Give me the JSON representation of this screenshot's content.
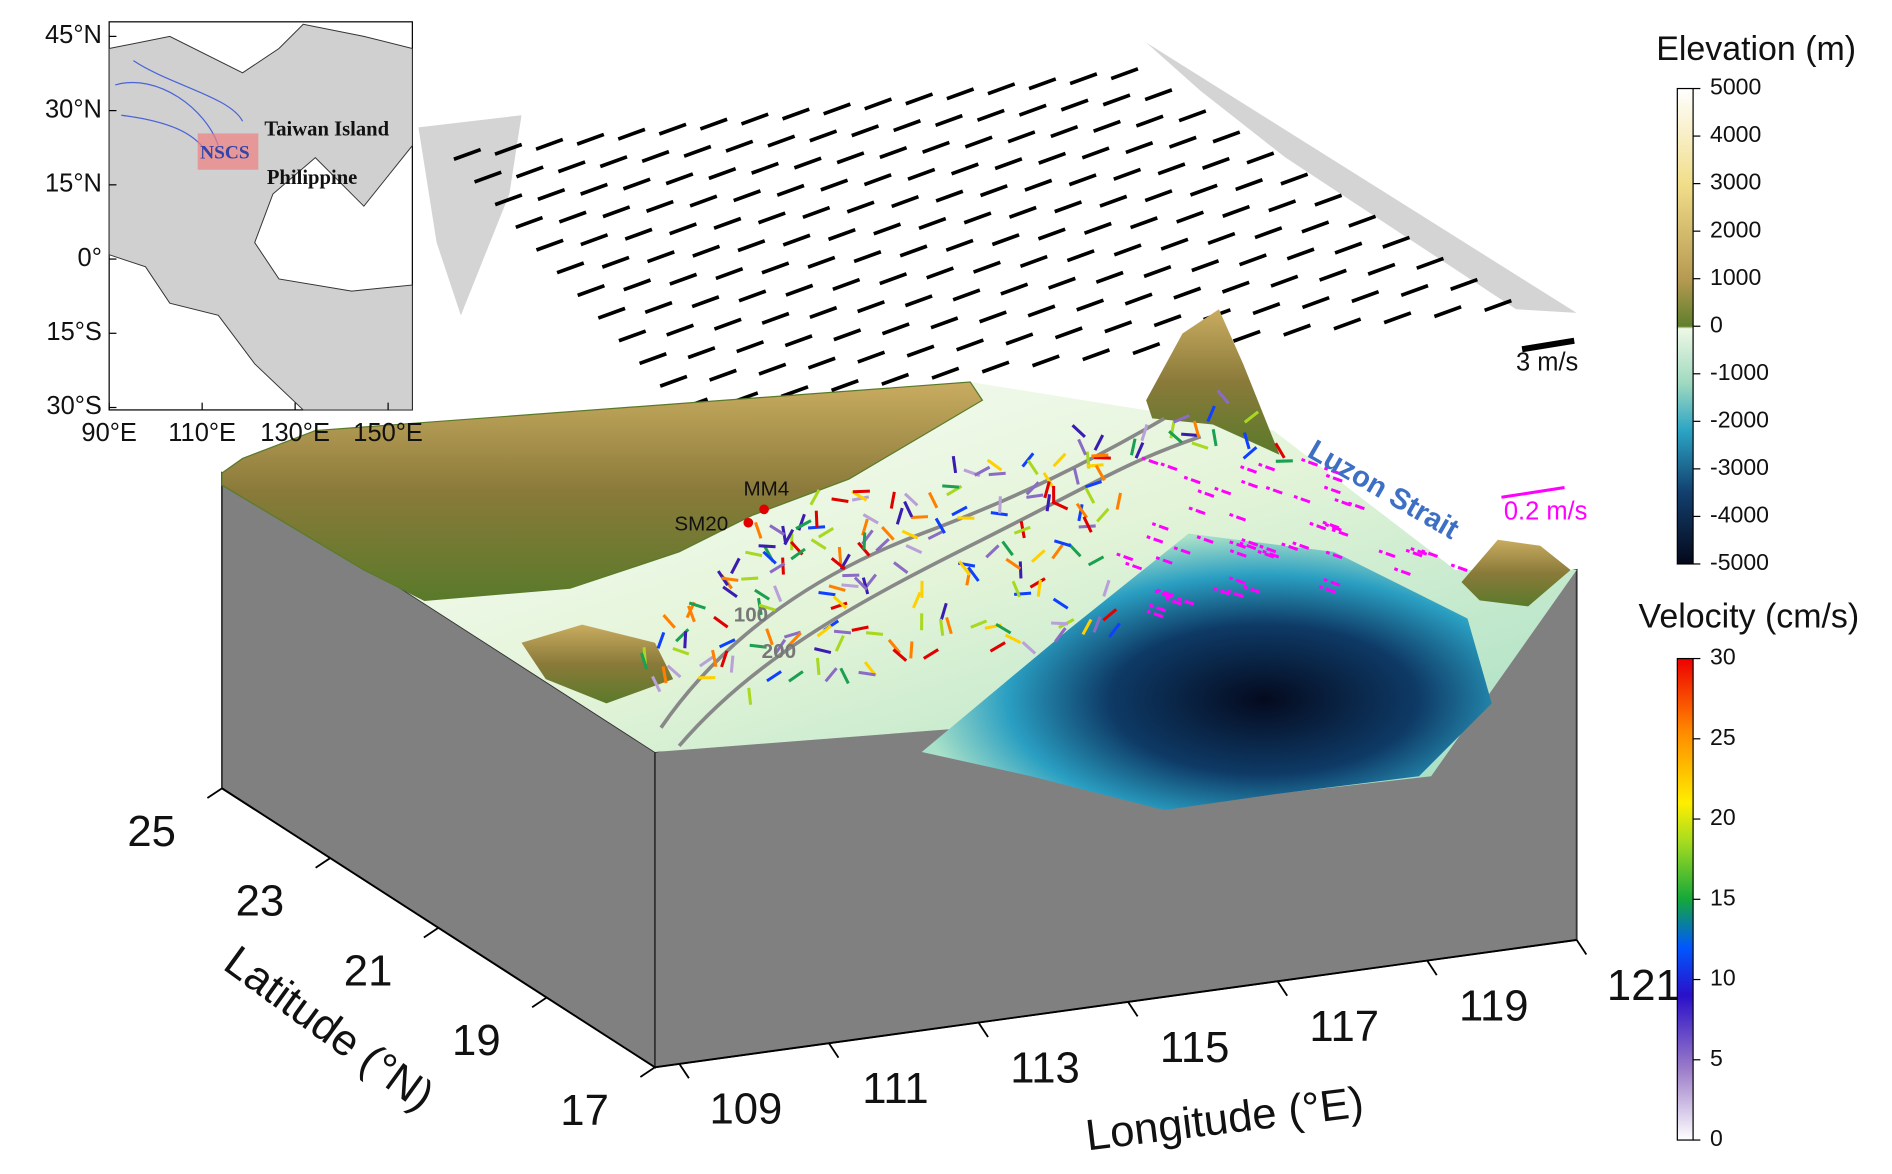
{
  "inset": {
    "labels": [
      "Taiwan Island",
      "NSCS",
      "Philippine"
    ],
    "lat_ticks": [
      {
        "value": 45,
        "label": "45°N"
      },
      {
        "value": 30,
        "label": "30°N"
      },
      {
        "value": 15,
        "label": "15°N"
      },
      {
        "value": 0,
        "label": "0°"
      },
      {
        "value": -15,
        "label": "15°S"
      },
      {
        "value": -30,
        "label": "30°S"
      }
    ],
    "lon_ticks": [
      {
        "value": 90,
        "label": "90°E"
      },
      {
        "value": 110,
        "label": "110°E"
      },
      {
        "value": 130,
        "label": "130°E"
      },
      {
        "value": 150,
        "label": "150°E"
      }
    ]
  },
  "main": {
    "lat_label": "Latitude (°N)",
    "lat_ticks": [
      25,
      23,
      21,
      19,
      17
    ],
    "lon_label": "Longitude (°E)",
    "lon_ticks": [
      109,
      111,
      113,
      115,
      117,
      119,
      121
    ],
    "annotations": {
      "wind_scale": "3 m/s",
      "current_scale": "0.2 m/s",
      "strait": "Luzon Strait",
      "station1": "MM4",
      "station2": "SM20",
      "contour1": "100",
      "contour2": "200"
    }
  },
  "colorbars": [
    {
      "title": "Elevation (m)",
      "lim": [
        -5000,
        5000
      ],
      "ticks": [
        5000,
        4000,
        3000,
        2000,
        1000,
        0,
        -1000,
        -2000,
        -3000,
        -4000,
        -5000
      ]
    },
    {
      "title": "Velocity (cm/s)",
      "lim": [
        0,
        30
      ],
      "ticks": [
        0,
        5,
        10,
        15,
        20,
        25,
        30
      ]
    }
  ]
}
